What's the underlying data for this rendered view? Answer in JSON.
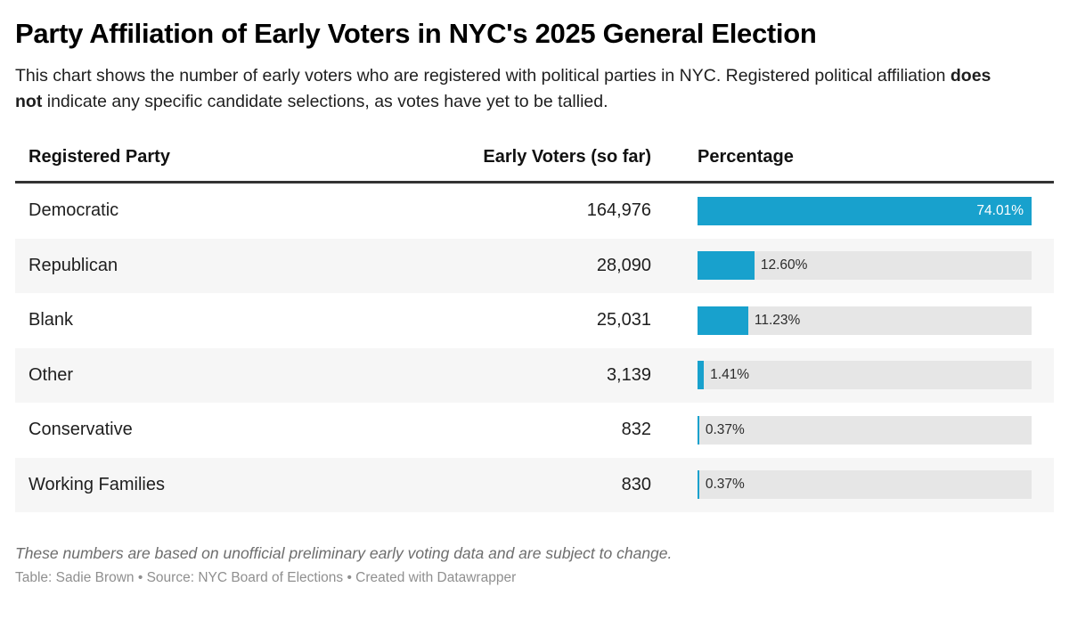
{
  "header": {
    "title": "Party Affiliation of Early Voters in NYC's 2025 General Election",
    "description": {
      "before": "This chart shows the number of early voters who are registered with political parties in NYC. Registered political affiliation ",
      "bold": "does not",
      "after": " indicate any specific candidate selections, as votes have yet to be tallied."
    }
  },
  "table": {
    "columns": [
      "Registered Party",
      "Early Voters (so far)",
      "Percentage"
    ],
    "rows": [
      {
        "party": "Democratic",
        "voters": "164,976",
        "pct_label": "74.01%",
        "pct_value": 74.01
      },
      {
        "party": "Republican",
        "voters": "28,090",
        "pct_label": "12.60%",
        "pct_value": 12.6
      },
      {
        "party": "Blank",
        "voters": "25,031",
        "pct_label": "11.23%",
        "pct_value": 11.23
      },
      {
        "party": "Other",
        "voters": "3,139",
        "pct_label": "1.41%",
        "pct_value": 1.41
      },
      {
        "party": "Conservative",
        "voters": "832",
        "pct_label": "0.37%",
        "pct_value": 0.37
      },
      {
        "party": "Working Families",
        "voters": "830",
        "pct_label": "0.37%",
        "pct_value": 0.37
      }
    ]
  },
  "footer": {
    "note": "These numbers are based on unofficial preliminary early voting data and are subject to change.",
    "credit": "Table: Sadie Brown • Source: NYC Board of Elections • Created with Datawrapper"
  },
  "colors": {
    "bar": "#18a1cd",
    "track": "#e6e6e6",
    "alt_row": "#f6f6f6",
    "header_rule": "#333333"
  },
  "chart_data": {
    "type": "table",
    "title": "Party Affiliation of Early Voters in NYC's 2025 General Election",
    "columns": [
      "Registered Party",
      "Early Voters (so far)",
      "Percentage"
    ],
    "categories": [
      "Democratic",
      "Republican",
      "Blank",
      "Other",
      "Conservative",
      "Working Families"
    ],
    "series": [
      {
        "name": "Early Voters (so far)",
        "values": [
          164976,
          28090,
          25031,
          3139,
          832,
          830
        ]
      },
      {
        "name": "Percentage",
        "values": [
          74.01,
          12.6,
          11.23,
          1.41,
          0.37,
          0.37
        ]
      }
    ],
    "bar_scale_max": 74.01,
    "bar_color": "#18a1cd",
    "legend_position": "none",
    "grid": false
  }
}
